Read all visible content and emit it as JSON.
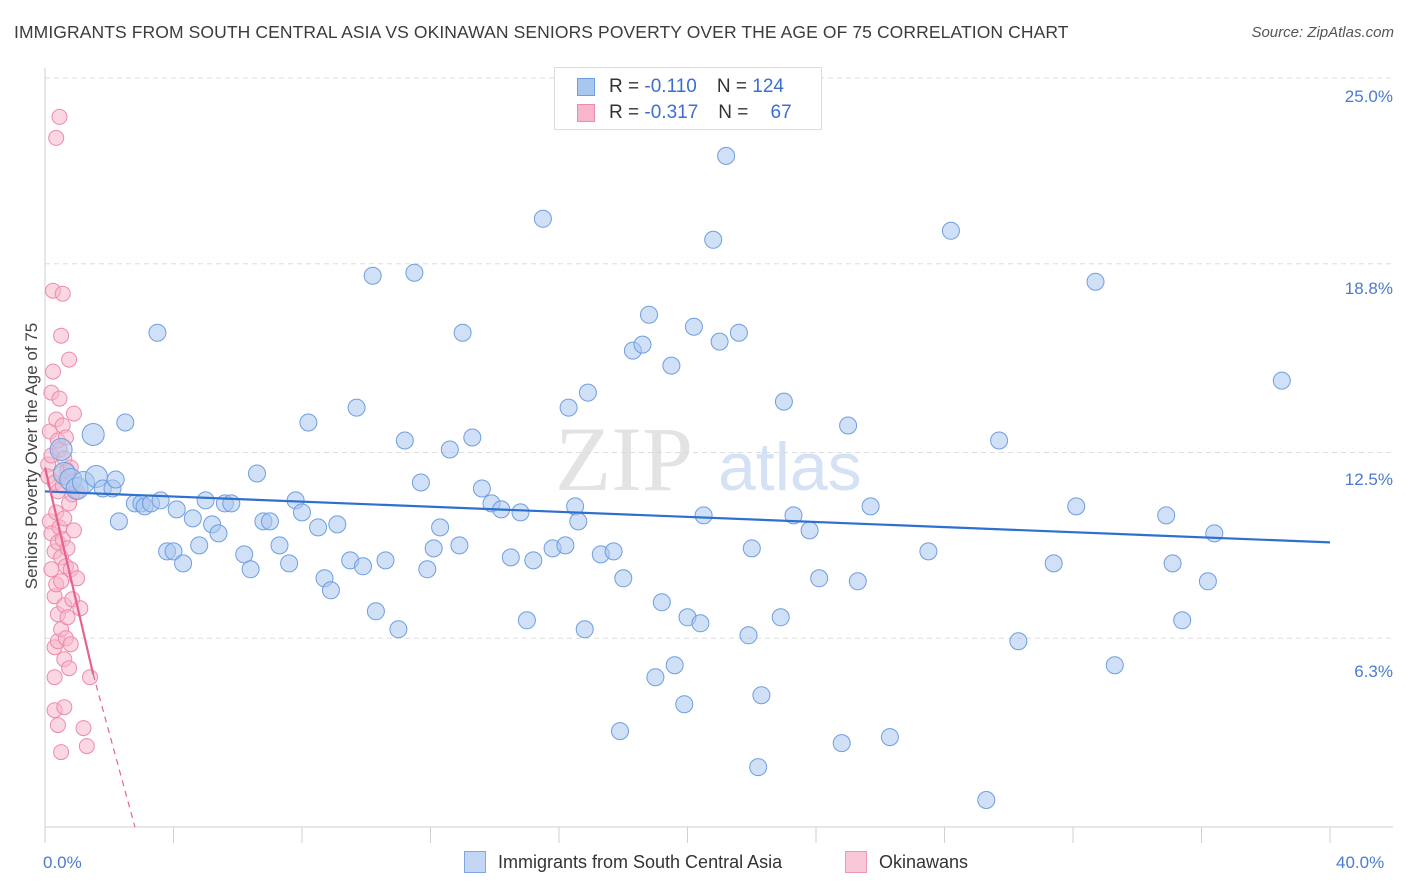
{
  "title": "IMMIGRANTS FROM SOUTH CENTRAL ASIA VS OKINAWAN SENIORS POVERTY OVER THE AGE OF 75 CORRELATION CHART",
  "source": "Source: ZipAtlas.com",
  "watermark": {
    "zip": "ZIP",
    "atlas": "atlas"
  },
  "legend": {
    "rows": [
      {
        "r_label": "R =",
        "r_value": "-0.110",
        "n_label": "N =",
        "n_value": "124"
      },
      {
        "r_label": "R =",
        "r_value": "-0.317",
        "n_label": "N =",
        "n_value": "67"
      }
    ]
  },
  "colors": {
    "blue_fill": "#a9c6ee",
    "blue_stroke": "#6f9ee0",
    "blue_line": "#2f6fcf",
    "pink_fill": "#f7b6cb",
    "pink_stroke": "#ee8aab",
    "pink_line": "#e5638f",
    "tick_label": "#4a7bd0",
    "grid": "#dddddd"
  },
  "chart_data": {
    "type": "scatter",
    "title": "IMMIGRANTS FROM SOUTH CENTRAL ASIA VS OKINAWAN SENIORS POVERTY OVER THE AGE OF 75 CORRELATION CHART",
    "xlabel": "",
    "ylabel": "Seniors Poverty Over the Age of 75",
    "xlim": [
      0,
      40
    ],
    "ylim": [
      0,
      25
    ],
    "x_tick_labels": [
      "0.0%",
      "40.0%"
    ],
    "y_ticks": [
      6.3,
      12.5,
      18.8,
      25.0
    ],
    "y_tick_labels": [
      "6.3%",
      "12.5%",
      "18.8%",
      "25.0%"
    ],
    "grid": "horizontal dashed",
    "legend_position": "top-center",
    "series": [
      {
        "name": "Immigrants from South Central Asia",
        "color": "#a9c6ee",
        "R": -0.11,
        "N": 124,
        "trend": {
          "x": [
            0,
            40
          ],
          "y": [
            11.2,
            9.5
          ]
        },
        "points": [
          [
            0.5,
            12.6
          ],
          [
            0.6,
            11.8
          ],
          [
            0.8,
            11.6
          ],
          [
            1.0,
            11.3
          ],
          [
            1.2,
            11.5
          ],
          [
            1.5,
            13.1
          ],
          [
            1.6,
            11.7
          ],
          [
            1.8,
            11.3
          ],
          [
            2.1,
            11.3
          ],
          [
            2.2,
            11.6
          ],
          [
            2.3,
            10.2
          ],
          [
            2.5,
            13.5
          ],
          [
            2.8,
            10.8
          ],
          [
            3.0,
            10.8
          ],
          [
            3.1,
            10.7
          ],
          [
            3.3,
            10.8
          ],
          [
            3.5,
            16.5
          ],
          [
            3.6,
            10.9
          ],
          [
            3.8,
            9.2
          ],
          [
            4.0,
            9.2
          ],
          [
            4.1,
            10.6
          ],
          [
            4.3,
            8.8
          ],
          [
            4.6,
            10.3
          ],
          [
            4.8,
            9.4
          ],
          [
            5.0,
            10.9
          ],
          [
            5.2,
            10.1
          ],
          [
            5.4,
            9.8
          ],
          [
            5.6,
            10.8
          ],
          [
            5.8,
            10.8
          ],
          [
            6.2,
            9.1
          ],
          [
            6.4,
            8.6
          ],
          [
            6.6,
            11.8
          ],
          [
            6.8,
            10.2
          ],
          [
            7.0,
            10.2
          ],
          [
            7.3,
            9.4
          ],
          [
            7.6,
            8.8
          ],
          [
            7.8,
            10.9
          ],
          [
            8.0,
            10.5
          ],
          [
            8.2,
            13.5
          ],
          [
            8.5,
            10.0
          ],
          [
            8.7,
            8.3
          ],
          [
            8.9,
            7.9
          ],
          [
            9.1,
            10.1
          ],
          [
            9.5,
            8.9
          ],
          [
            9.7,
            14.0
          ],
          [
            9.9,
            8.7
          ],
          [
            10.2,
            18.4
          ],
          [
            10.3,
            7.2
          ],
          [
            10.6,
            8.9
          ],
          [
            11.0,
            6.6
          ],
          [
            11.2,
            12.9
          ],
          [
            11.5,
            18.5
          ],
          [
            11.7,
            11.5
          ],
          [
            11.9,
            8.6
          ],
          [
            12.1,
            9.3
          ],
          [
            12.3,
            10.0
          ],
          [
            12.6,
            12.6
          ],
          [
            12.9,
            9.4
          ],
          [
            13.0,
            16.5
          ],
          [
            13.3,
            13.0
          ],
          [
            13.6,
            11.3
          ],
          [
            13.9,
            10.8
          ],
          [
            14.2,
            10.6
          ],
          [
            14.5,
            9.0
          ],
          [
            14.8,
            10.5
          ],
          [
            15.0,
            6.9
          ],
          [
            15.2,
            8.9
          ],
          [
            15.5,
            20.3
          ],
          [
            15.8,
            9.3
          ],
          [
            16.2,
            9.4
          ],
          [
            16.3,
            14.0
          ],
          [
            16.5,
            10.7
          ],
          [
            16.6,
            10.2
          ],
          [
            16.8,
            6.6
          ],
          [
            16.9,
            14.5
          ],
          [
            17.3,
            9.1
          ],
          [
            17.7,
            9.2
          ],
          [
            17.9,
            3.2
          ],
          [
            18.0,
            8.3
          ],
          [
            18.3,
            15.9
          ],
          [
            18.6,
            16.1
          ],
          [
            18.8,
            17.1
          ],
          [
            19.0,
            5.0
          ],
          [
            19.2,
            7.5
          ],
          [
            19.5,
            15.4
          ],
          [
            19.6,
            5.4
          ],
          [
            19.9,
            4.1
          ],
          [
            20.0,
            7.0
          ],
          [
            20.2,
            16.7
          ],
          [
            20.4,
            6.8
          ],
          [
            20.5,
            10.4
          ],
          [
            20.8,
            19.6
          ],
          [
            21.0,
            16.2
          ],
          [
            21.2,
            22.4
          ],
          [
            21.6,
            16.5
          ],
          [
            21.9,
            6.4
          ],
          [
            22.0,
            9.3
          ],
          [
            22.2,
            2.0
          ],
          [
            22.3,
            4.4
          ],
          [
            22.9,
            7.0
          ],
          [
            23.0,
            14.2
          ],
          [
            23.3,
            10.4
          ],
          [
            23.8,
            9.9
          ],
          [
            24.1,
            8.3
          ],
          [
            24.8,
            2.8
          ],
          [
            25.0,
            13.4
          ],
          [
            25.3,
            8.2
          ],
          [
            25.7,
            10.7
          ],
          [
            26.3,
            3.0
          ],
          [
            27.5,
            9.2
          ],
          [
            28.2,
            19.9
          ],
          [
            29.3,
            0.9
          ],
          [
            29.7,
            12.9
          ],
          [
            30.3,
            6.2
          ],
          [
            31.4,
            8.8
          ],
          [
            32.1,
            10.7
          ],
          [
            32.7,
            18.2
          ],
          [
            33.3,
            5.4
          ],
          [
            34.9,
            10.4
          ],
          [
            35.1,
            8.8
          ],
          [
            35.4,
            6.9
          ],
          [
            36.2,
            8.2
          ],
          [
            36.4,
            9.8
          ],
          [
            38.5,
            14.9
          ]
        ]
      },
      {
        "name": "Okinawans",
        "color": "#f7b6cb",
        "R": -0.317,
        "N": 67,
        "trend": {
          "x": [
            0,
            1.5
          ],
          "y": [
            12.0,
            5.1
          ]
        },
        "trend_dashed_extension": {
          "x": [
            1.5,
            2.8
          ],
          "y": [
            5.1,
            0.0
          ]
        },
        "points": [
          [
            0.1,
            12.1
          ],
          [
            0.1,
            11.7
          ],
          [
            0.15,
            13.2
          ],
          [
            0.15,
            10.2
          ],
          [
            0.2,
            14.5
          ],
          [
            0.2,
            12.4
          ],
          [
            0.2,
            9.8
          ],
          [
            0.2,
            8.6
          ],
          [
            0.25,
            15.2
          ],
          [
            0.25,
            17.9
          ],
          [
            0.3,
            11.5
          ],
          [
            0.3,
            9.2
          ],
          [
            0.3,
            7.7
          ],
          [
            0.3,
            6.0
          ],
          [
            0.3,
            5.0
          ],
          [
            0.3,
            3.9
          ],
          [
            0.35,
            23.0
          ],
          [
            0.35,
            13.6
          ],
          [
            0.35,
            10.5
          ],
          [
            0.35,
            8.1
          ],
          [
            0.4,
            12.9
          ],
          [
            0.4,
            11.2
          ],
          [
            0.4,
            9.5
          ],
          [
            0.4,
            7.1
          ],
          [
            0.4,
            6.2
          ],
          [
            0.4,
            3.4
          ],
          [
            0.45,
            23.7
          ],
          [
            0.45,
            14.3
          ],
          [
            0.45,
            12.6
          ],
          [
            0.45,
            10.0
          ],
          [
            0.5,
            16.4
          ],
          [
            0.5,
            11.8
          ],
          [
            0.5,
            9.0
          ],
          [
            0.5,
            8.2
          ],
          [
            0.5,
            6.6
          ],
          [
            0.5,
            2.5
          ],
          [
            0.55,
            17.8
          ],
          [
            0.55,
            13.4
          ],
          [
            0.55,
            11.4
          ],
          [
            0.55,
            9.6
          ],
          [
            0.6,
            12.3
          ],
          [
            0.6,
            10.3
          ],
          [
            0.6,
            7.4
          ],
          [
            0.6,
            5.6
          ],
          [
            0.6,
            4.0
          ],
          [
            0.65,
            13.0
          ],
          [
            0.65,
            8.7
          ],
          [
            0.65,
            6.3
          ],
          [
            0.7,
            11.9
          ],
          [
            0.7,
            9.3
          ],
          [
            0.7,
            7.0
          ],
          [
            0.75,
            15.6
          ],
          [
            0.75,
            10.8
          ],
          [
            0.75,
            5.3
          ],
          [
            0.8,
            12.0
          ],
          [
            0.8,
            8.6
          ],
          [
            0.8,
            6.1
          ],
          [
            0.85,
            11.1
          ],
          [
            0.85,
            7.6
          ],
          [
            0.9,
            13.8
          ],
          [
            0.9,
            9.9
          ],
          [
            1.0,
            11.2
          ],
          [
            1.0,
            8.3
          ],
          [
            1.1,
            7.3
          ],
          [
            1.2,
            3.3
          ],
          [
            1.3,
            2.7
          ],
          [
            1.4,
            5.0
          ]
        ]
      }
    ]
  }
}
